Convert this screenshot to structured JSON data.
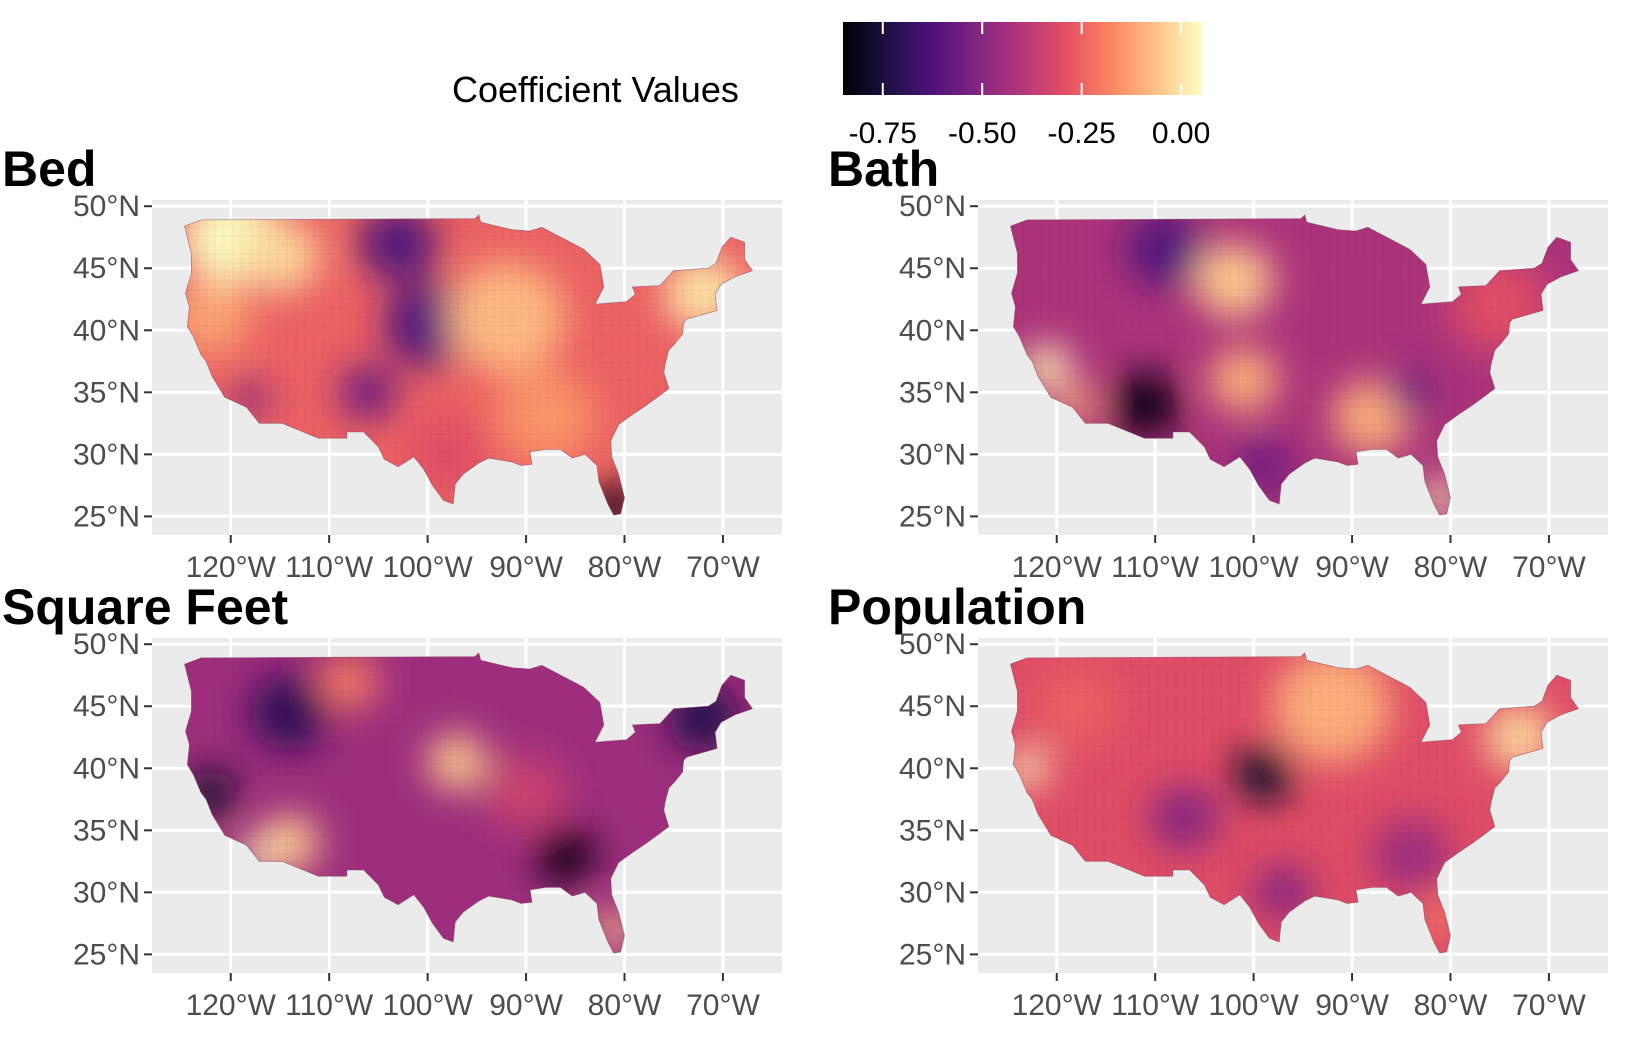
{
  "legend": {
    "title": "Coefficient Values",
    "range": [
      -0.85,
      0.05
    ],
    "ticks": [
      {
        "value": -0.75,
        "label": "-0.75"
      },
      {
        "value": -0.5,
        "label": "-0.50"
      },
      {
        "value": -0.25,
        "label": "-0.25"
      },
      {
        "value": 0.0,
        "label": "0.00"
      }
    ],
    "palette": [
      "#000004",
      "#1c1044",
      "#4f127b",
      "#812581",
      "#b5367a",
      "#e55064",
      "#fb8761",
      "#fec287",
      "#fcfdbf"
    ]
  },
  "axes": {
    "lon_range": [
      -128,
      -64
    ],
    "lat_range": [
      23.5,
      50.5
    ],
    "x_ticks": [
      {
        "value": -120,
        "label": "120°W"
      },
      {
        "value": -110,
        "label": "110°W"
      },
      {
        "value": -100,
        "label": "100°W"
      },
      {
        "value": -90,
        "label": "90°W"
      },
      {
        "value": -80,
        "label": "80°W"
      },
      {
        "value": -70,
        "label": "70°W"
      }
    ],
    "y_ticks": [
      {
        "value": 50,
        "label": "50°N"
      },
      {
        "value": 45,
        "label": "45°N"
      },
      {
        "value": 40,
        "label": "40°N"
      },
      {
        "value": 35,
        "label": "35°N"
      },
      {
        "value": 30,
        "label": "30°N"
      },
      {
        "value": 25,
        "label": "25°N"
      }
    ],
    "panel_background": "#ebebeb",
    "grid_color": "#ffffff"
  },
  "panels": [
    {
      "title": "Bed",
      "base_value": -0.25,
      "spots": [
        {
          "lon": -120,
          "lat": 47.5,
          "value": 0.05,
          "r": 5
        },
        {
          "lon": -115,
          "lat": 46,
          "value": -0.02,
          "r": 4
        },
        {
          "lon": -122,
          "lat": 41,
          "value": -0.12,
          "r": 4
        },
        {
          "lon": -103,
          "lat": 47,
          "value": -0.62,
          "r": 4
        },
        {
          "lon": -100,
          "lat": 40.5,
          "value": -0.62,
          "r": 4.5
        },
        {
          "lon": -106,
          "lat": 35,
          "value": -0.55,
          "r": 3
        },
        {
          "lon": -118,
          "lat": 34.5,
          "value": -0.5,
          "r": 2
        },
        {
          "lon": -92,
          "lat": 41,
          "value": -0.08,
          "r": 6
        },
        {
          "lon": -72,
          "lat": 43,
          "value": 0.0,
          "r": 4
        },
        {
          "lon": -88,
          "lat": 33,
          "value": -0.15,
          "r": 5
        },
        {
          "lon": -81,
          "lat": 25.8,
          "value": -0.82,
          "r": 2.5
        },
        {
          "lon": -98,
          "lat": 30,
          "value": -0.3,
          "r": 4
        }
      ]
    },
    {
      "title": "Bath",
      "base_value": -0.42,
      "spots": [
        {
          "lon": -111,
          "lat": 34,
          "value": -0.82,
          "r": 3.5
        },
        {
          "lon": -109,
          "lat": 46.5,
          "value": -0.62,
          "r": 4
        },
        {
          "lon": -102,
          "lat": 44,
          "value": -0.05,
          "r": 4
        },
        {
          "lon": -101,
          "lat": 36,
          "value": -0.1,
          "r": 3.5
        },
        {
          "lon": -121,
          "lat": 37,
          "value": 0.02,
          "r": 2.5
        },
        {
          "lon": -118,
          "lat": 34,
          "value": -0.1,
          "r": 2
        },
        {
          "lon": -88,
          "lat": 33,
          "value": -0.1,
          "r": 4
        },
        {
          "lon": -81,
          "lat": 26.5,
          "value": 0.02,
          "r": 2
        },
        {
          "lon": -99,
          "lat": 29,
          "value": -0.55,
          "r": 3
        },
        {
          "lon": -84,
          "lat": 35,
          "value": -0.55,
          "r": 2.5
        },
        {
          "lon": -75,
          "lat": 42,
          "value": -0.3,
          "r": 5
        }
      ]
    },
    {
      "title": "Square Feet",
      "base_value": -0.45,
      "spots": [
        {
          "lon": -114,
          "lat": 44.5,
          "value": -0.7,
          "r": 4
        },
        {
          "lon": -122,
          "lat": 38,
          "value": -0.78,
          "r": 2.5
        },
        {
          "lon": -114,
          "lat": 34,
          "value": -0.05,
          "r": 3
        },
        {
          "lon": -117,
          "lat": 33,
          "value": 0.02,
          "r": 2
        },
        {
          "lon": -97,
          "lat": 40.5,
          "value": -0.05,
          "r": 3
        },
        {
          "lon": -108,
          "lat": 47,
          "value": -0.2,
          "r": 3
        },
        {
          "lon": -86,
          "lat": 33,
          "value": -0.82,
          "r": 3
        },
        {
          "lon": -72,
          "lat": 44,
          "value": -0.72,
          "r": 3.5
        },
        {
          "lon": -81,
          "lat": 27,
          "value": -0.05,
          "r": 2
        },
        {
          "lon": -90,
          "lat": 38,
          "value": -0.35,
          "r": 4
        }
      ]
    },
    {
      "title": "Population",
      "base_value": -0.3,
      "spots": [
        {
          "lon": -99,
          "lat": 39.5,
          "value": -0.78,
          "r": 3
        },
        {
          "lon": -123,
          "lat": 40,
          "value": 0.05,
          "r": 2
        },
        {
          "lon": -107,
          "lat": 36,
          "value": -0.5,
          "r": 3.5
        },
        {
          "lon": -92,
          "lat": 45,
          "value": -0.1,
          "r": 6
        },
        {
          "lon": -73,
          "lat": 42.5,
          "value": -0.02,
          "r": 3.5
        },
        {
          "lon": -84,
          "lat": 33,
          "value": -0.45,
          "r": 4
        },
        {
          "lon": -81,
          "lat": 28,
          "value": -0.2,
          "r": 2
        },
        {
          "lon": -97,
          "lat": 30,
          "value": -0.5,
          "r": 3
        },
        {
          "lon": -118,
          "lat": 45,
          "value": -0.25,
          "r": 4
        }
      ]
    }
  ]
}
